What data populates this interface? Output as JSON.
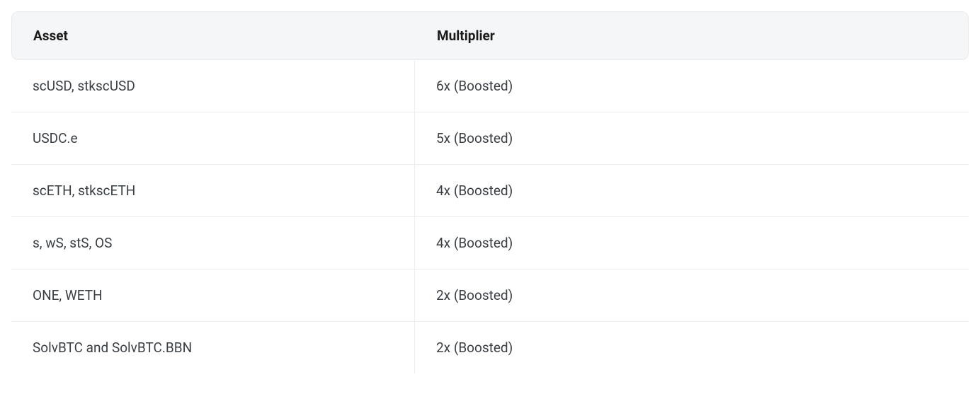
{
  "table": {
    "columns": [
      "Asset",
      "Multiplier"
    ],
    "rows": [
      {
        "asset": "scUSD, stkscUSD",
        "multiplier": "6x (Boosted)"
      },
      {
        "asset": "USDC.e",
        "multiplier": "5x (Boosted)"
      },
      {
        "asset": "scETH, stkscETH",
        "multiplier": "4x (Boosted)"
      },
      {
        "asset": "s, wS, stS, OS",
        "multiplier": "4x (Boosted)"
      },
      {
        "asset": "ONE, WETH",
        "multiplier": "2x (Boosted)"
      },
      {
        "asset": "SolvBTC and SolvBTC.BBN",
        "multiplier": "2x (Boosted)"
      }
    ],
    "header_bg": "#f5f6f7",
    "header_border": "#e8e9ea",
    "row_border": "#ebecee",
    "text_color": "#3a3f44",
    "header_text_color": "#1a1a1a",
    "font_size": 19,
    "header_font_weight": 700,
    "border_radius": 10
  }
}
